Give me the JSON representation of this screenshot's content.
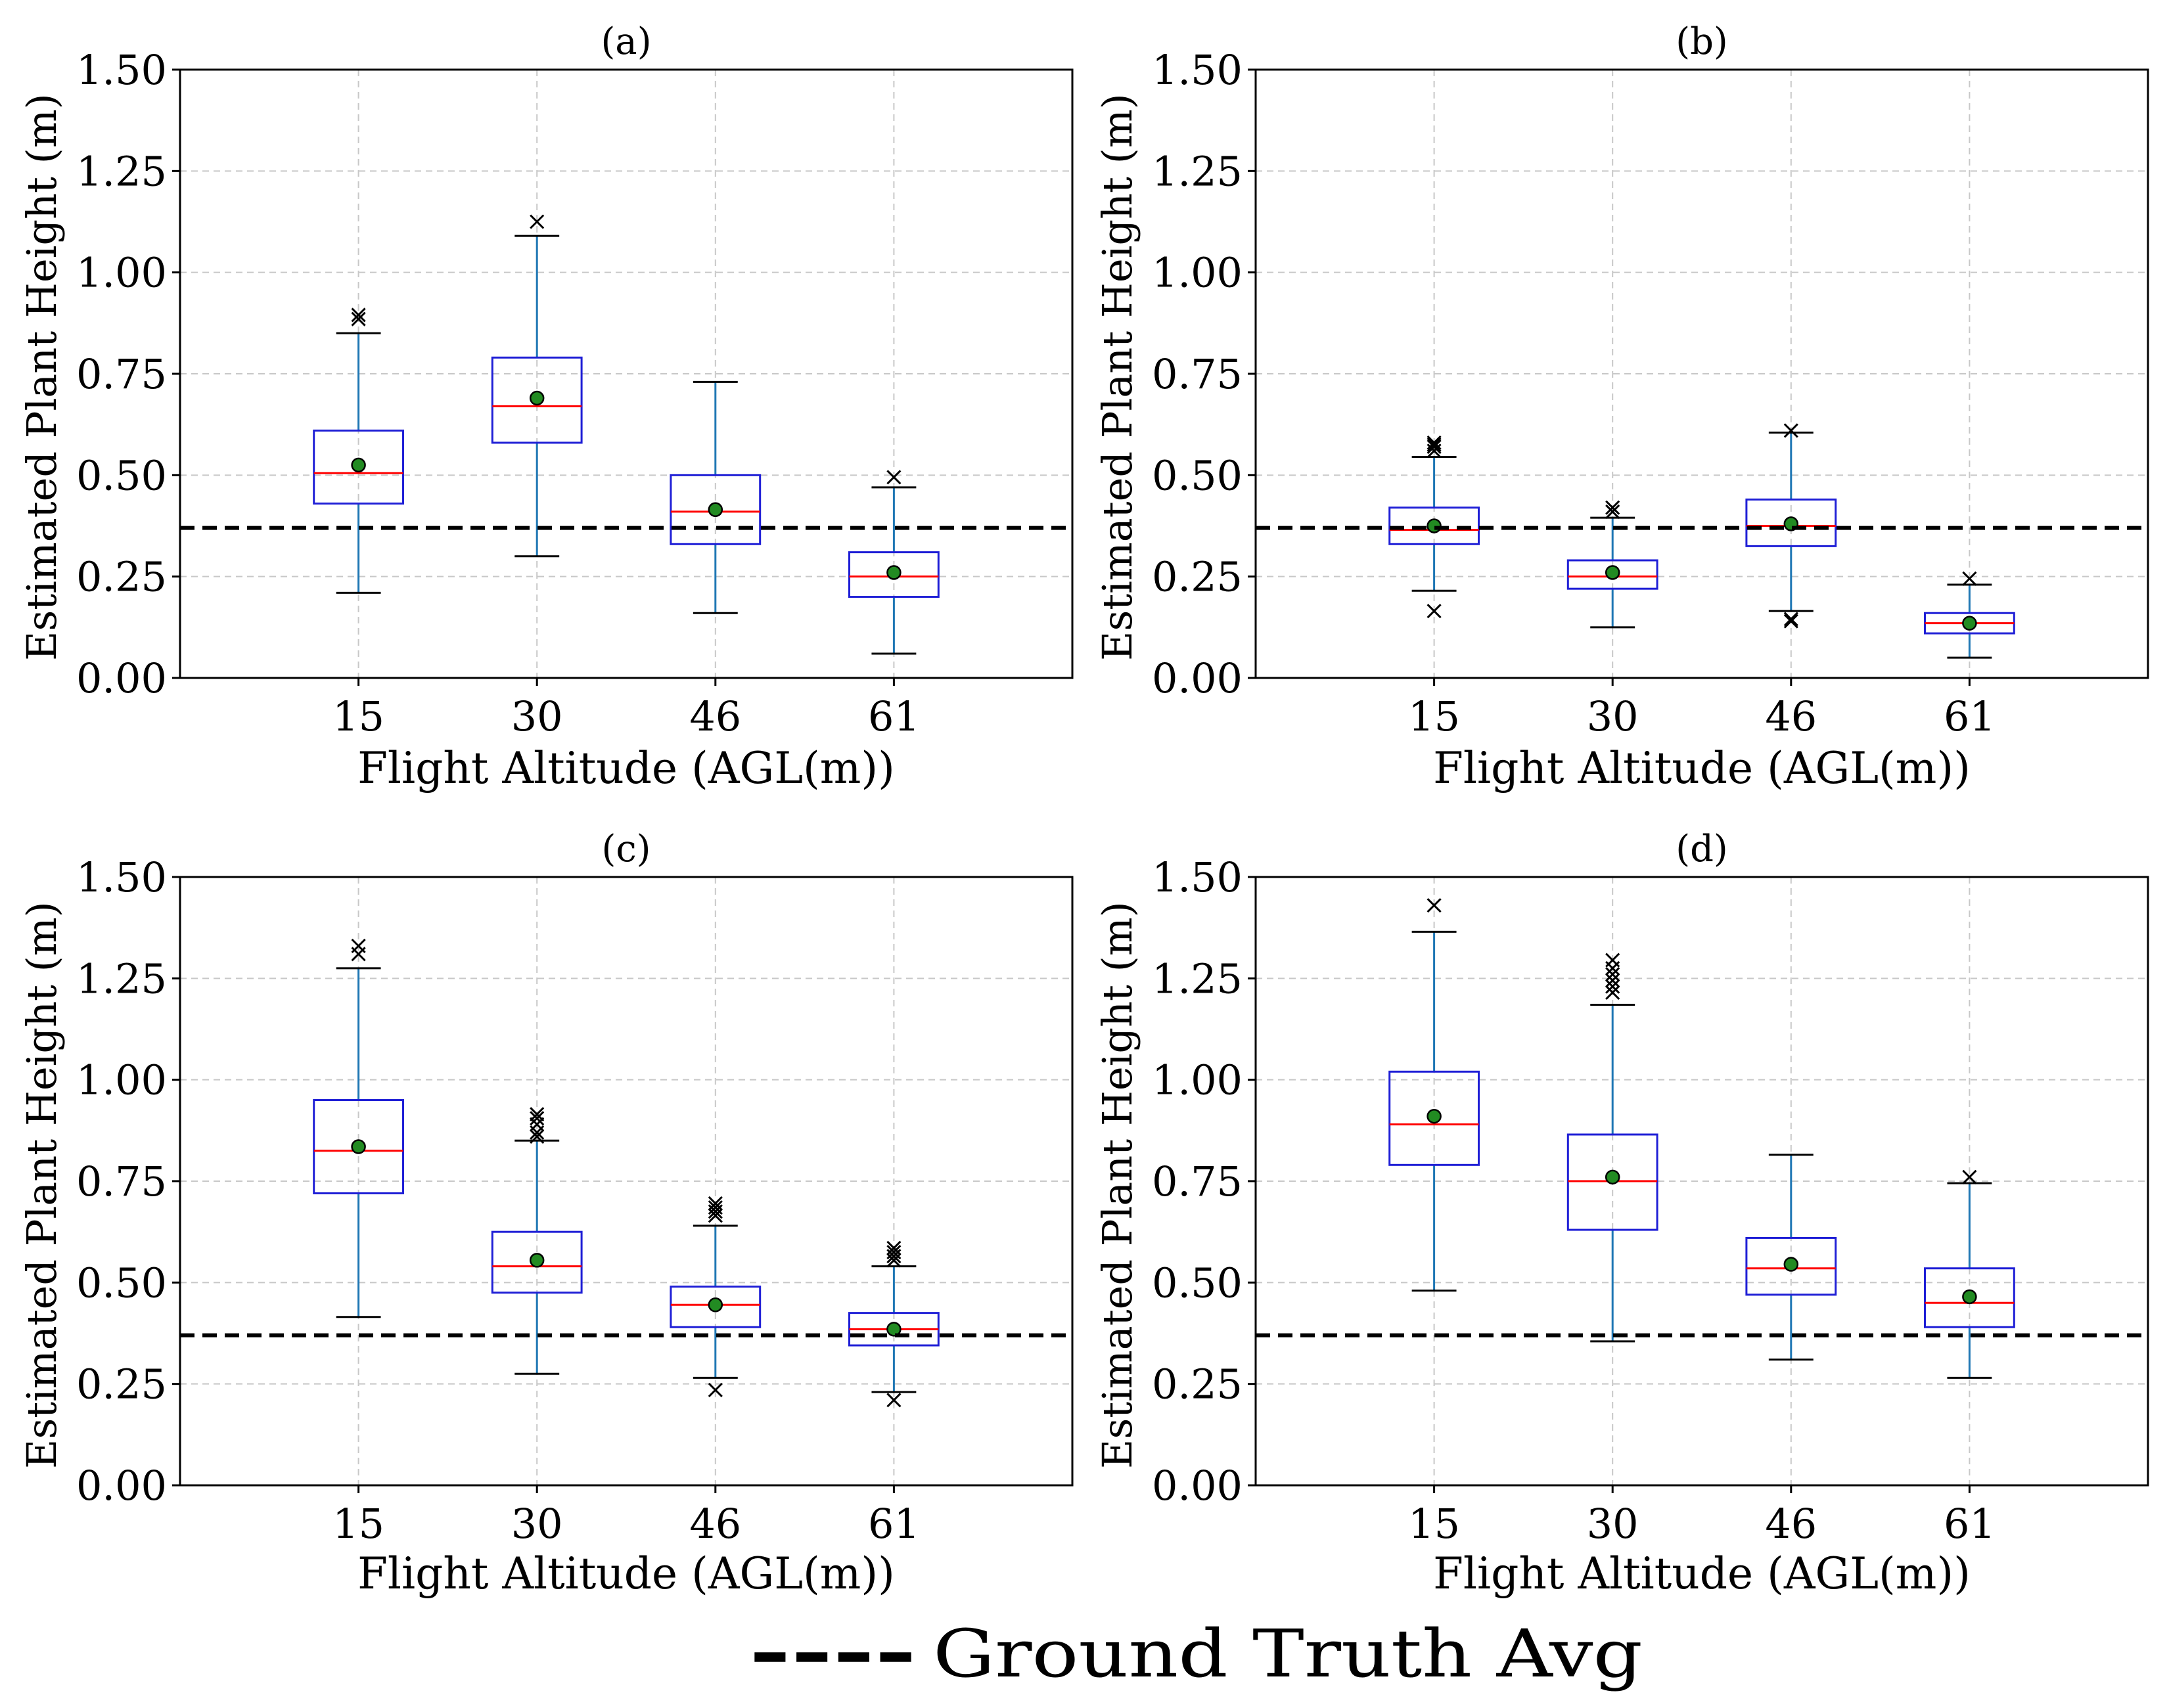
{
  "colors": {
    "box": "#1f1fd6",
    "whisker": "#1f77b4",
    "median": "#ff0000",
    "mean_fill": "#228b22",
    "ground_truth": "#000000",
    "grid": "#c8c8c8"
  },
  "legend": {
    "dash_text": "----",
    "label": "Ground Truth Avg"
  },
  "chart_data": [
    {
      "type": "box",
      "title": "(a)",
      "xlabel": "Flight Altitude (AGL(m))",
      "ylabel": "Estimated Plant Height (m)",
      "ylim": [
        0,
        1.5
      ],
      "yticks": [
        "0.00",
        "0.25",
        "0.50",
        "0.75",
        "1.00",
        "1.25",
        "1.50"
      ],
      "categories": [
        "15",
        "30",
        "46",
        "61"
      ],
      "ground_truth": 0.37,
      "grid": true,
      "boxes": [
        {
          "whislo": 0.21,
          "q1": 0.43,
          "med": 0.505,
          "q3": 0.61,
          "whishi": 0.85,
          "mean": 0.525,
          "fliers": [
            0.885,
            0.895
          ]
        },
        {
          "whislo": 0.3,
          "q1": 0.58,
          "med": 0.67,
          "q3": 0.79,
          "whishi": 1.09,
          "mean": 0.69,
          "fliers": [
            1.125
          ]
        },
        {
          "whislo": 0.16,
          "q1": 0.33,
          "med": 0.41,
          "q3": 0.5,
          "whishi": 0.73,
          "mean": 0.415,
          "fliers": []
        },
        {
          "whislo": 0.06,
          "q1": 0.2,
          "med": 0.25,
          "q3": 0.31,
          "whishi": 0.47,
          "mean": 0.26,
          "fliers": [
            0.495
          ]
        }
      ]
    },
    {
      "type": "box",
      "title": "(b)",
      "xlabel": "Flight Altitude (AGL(m))",
      "ylabel": "Estimated Plant Height (m)",
      "ylim": [
        0,
        1.5
      ],
      "yticks": [
        "0.00",
        "0.25",
        "0.50",
        "0.75",
        "1.00",
        "1.25",
        "1.50"
      ],
      "categories": [
        "15",
        "30",
        "46",
        "61"
      ],
      "ground_truth": 0.37,
      "grid": true,
      "boxes": [
        {
          "whislo": 0.215,
          "q1": 0.33,
          "med": 0.365,
          "q3": 0.42,
          "whishi": 0.545,
          "mean": 0.375,
          "fliers": [
            0.165,
            0.56,
            0.57,
            0.575,
            0.58
          ]
        },
        {
          "whislo": 0.125,
          "q1": 0.22,
          "med": 0.25,
          "q3": 0.29,
          "whishi": 0.395,
          "mean": 0.26,
          "fliers": [
            0.41,
            0.42
          ]
        },
        {
          "whislo": 0.165,
          "q1": 0.325,
          "med": 0.375,
          "q3": 0.44,
          "whishi": 0.605,
          "mean": 0.38,
          "fliers": [
            0.14,
            0.145,
            0.61
          ]
        },
        {
          "whislo": 0.05,
          "q1": 0.11,
          "med": 0.135,
          "q3": 0.16,
          "whishi": 0.23,
          "mean": 0.135,
          "fliers": [
            0.245
          ]
        }
      ]
    },
    {
      "type": "box",
      "title": "(c)",
      "xlabel": "Flight Altitude (AGL(m))",
      "ylabel": "Estimated Plant Height (m)",
      "ylim": [
        0,
        1.5
      ],
      "yticks": [
        "0.00",
        "0.25",
        "0.50",
        "0.75",
        "1.00",
        "1.25",
        "1.50"
      ],
      "categories": [
        "15",
        "30",
        "46",
        "61"
      ],
      "ground_truth": 0.37,
      "grid": true,
      "boxes": [
        {
          "whislo": 0.415,
          "q1": 0.72,
          "med": 0.825,
          "q3": 0.95,
          "whishi": 1.275,
          "mean": 0.835,
          "fliers": [
            1.31,
            1.33
          ]
        },
        {
          "whislo": 0.275,
          "q1": 0.475,
          "med": 0.54,
          "q3": 0.625,
          "whishi": 0.85,
          "mean": 0.555,
          "fliers": [
            0.86,
            0.87,
            0.89,
            0.905,
            0.915
          ]
        },
        {
          "whislo": 0.265,
          "q1": 0.39,
          "med": 0.445,
          "q3": 0.49,
          "whishi": 0.64,
          "mean": 0.445,
          "fliers": [
            0.235,
            0.665,
            0.675,
            0.685,
            0.695
          ]
        },
        {
          "whislo": 0.23,
          "q1": 0.345,
          "med": 0.385,
          "q3": 0.425,
          "whishi": 0.54,
          "mean": 0.385,
          "fliers": [
            0.21,
            0.555,
            0.565,
            0.575,
            0.585
          ]
        }
      ]
    },
    {
      "type": "box",
      "title": "(d)",
      "xlabel": "Flight Altitude (AGL(m))",
      "ylabel": "Estimated Plant Height (m)",
      "ylim": [
        0,
        1.5
      ],
      "yticks": [
        "0.00",
        "0.25",
        "0.50",
        "0.75",
        "1.00",
        "1.25",
        "1.50"
      ],
      "categories": [
        "15",
        "30",
        "46",
        "61"
      ],
      "ground_truth": 0.37,
      "grid": true,
      "boxes": [
        {
          "whislo": 0.48,
          "q1": 0.79,
          "med": 0.89,
          "q3": 1.02,
          "whishi": 1.365,
          "mean": 0.91,
          "fliers": [
            1.43
          ]
        },
        {
          "whislo": 0.355,
          "q1": 0.63,
          "med": 0.75,
          "q3": 0.865,
          "whishi": 1.185,
          "mean": 0.76,
          "fliers": [
            1.215,
            1.23,
            1.245,
            1.26,
            1.275,
            1.295
          ]
        },
        {
          "whislo": 0.31,
          "q1": 0.47,
          "med": 0.535,
          "q3": 0.61,
          "whishi": 0.815,
          "mean": 0.545,
          "fliers": []
        },
        {
          "whislo": 0.265,
          "q1": 0.39,
          "med": 0.45,
          "q3": 0.535,
          "whishi": 0.745,
          "mean": 0.465,
          "fliers": [
            0.76
          ]
        }
      ]
    }
  ]
}
